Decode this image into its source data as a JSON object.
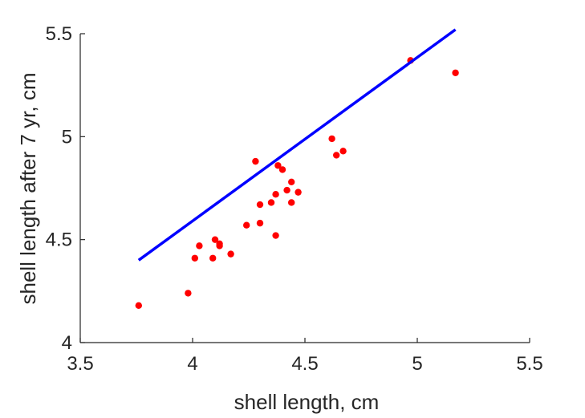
{
  "chart_data": {
    "type": "scatter",
    "xlabel": "shell length, cm",
    "ylabel": "shell length after 7 yr, cm",
    "xlim": [
      3.5,
      5.5
    ],
    "ylim": [
      4,
      5.5
    ],
    "xticks": [
      "3.5",
      "4",
      "4.5",
      "5",
      "5.5"
    ],
    "yticks": [
      "4",
      "4.5",
      "5",
      "5.5"
    ],
    "grid": false,
    "legend": "none",
    "colors": {
      "points": "#ff0000",
      "line": "#0000ff",
      "axis": "#262626"
    },
    "series": [
      {
        "kind": "points",
        "points": [
          [
            3.76,
            4.18
          ],
          [
            3.98,
            4.24
          ],
          [
            4.01,
            4.41
          ],
          [
            4.03,
            4.47
          ],
          [
            4.09,
            4.41
          ],
          [
            4.1,
            4.5
          ],
          [
            4.12,
            4.47
          ],
          [
            4.12,
            4.48
          ],
          [
            4.17,
            4.43
          ],
          [
            4.24,
            4.57
          ],
          [
            4.28,
            4.88
          ],
          [
            4.3,
            4.58
          ],
          [
            4.3,
            4.67
          ],
          [
            4.35,
            4.68
          ],
          [
            4.37,
            4.72
          ],
          [
            4.38,
            4.86
          ],
          [
            4.4,
            4.84
          ],
          [
            4.37,
            4.52
          ],
          [
            4.42,
            4.74
          ],
          [
            4.44,
            4.78
          ],
          [
            4.44,
            4.68
          ],
          [
            4.47,
            4.73
          ],
          [
            4.62,
            4.99
          ],
          [
            4.64,
            4.91
          ],
          [
            4.67,
            4.93
          ],
          [
            4.97,
            5.37
          ],
          [
            5.17,
            5.31
          ]
        ]
      },
      {
        "kind": "line",
        "points": [
          [
            3.76,
            4.4
          ],
          [
            5.17,
            5.52
          ]
        ]
      }
    ]
  }
}
